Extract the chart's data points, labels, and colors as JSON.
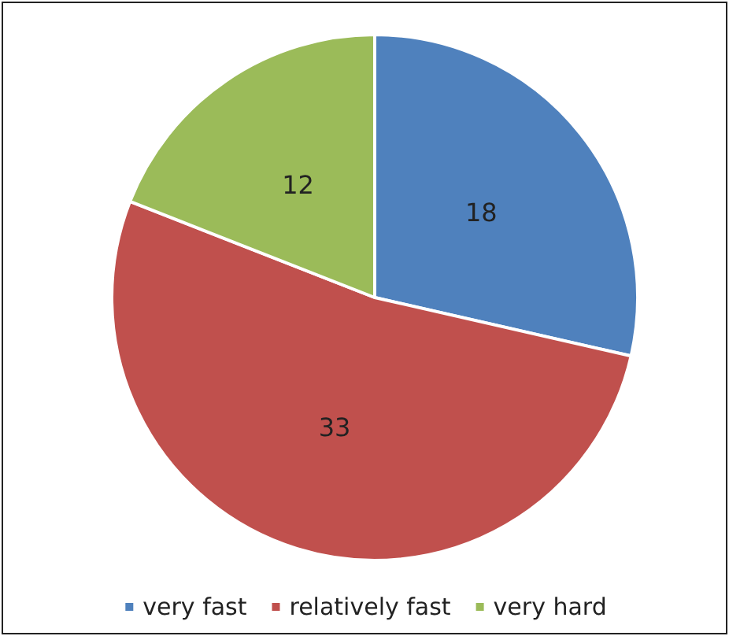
{
  "chart_data": {
    "type": "pie",
    "categories": [
      "very fast",
      "relatively fast",
      "very hard"
    ],
    "values": [
      18,
      33,
      12
    ],
    "colors": [
      "#4f81bd",
      "#c0504d",
      "#9bbb59"
    ],
    "data_labels": true,
    "legend": "bottom"
  }
}
